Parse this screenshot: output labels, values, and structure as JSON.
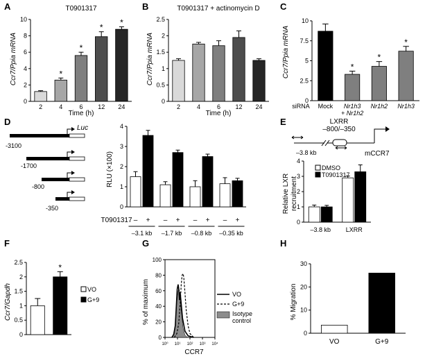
{
  "panels": [
    {
      "id": "A",
      "type": "bar",
      "title": "T0901317",
      "ylabel": "Ccr7/Ppia mRNA",
      "xlabel": "Time (h)",
      "categories": [
        "2",
        "4",
        "6",
        "12",
        "24"
      ],
      "values": [
        1.2,
        2.6,
        5.6,
        7.9,
        8.8
      ],
      "errors": [
        0.1,
        0.25,
        0.4,
        0.6,
        0.3
      ],
      "sig": [
        false,
        true,
        true,
        true,
        true
      ],
      "ylim": [
        0,
        10
      ],
      "yticks": [
        0,
        2,
        4,
        6,
        8,
        10
      ],
      "colors": [
        "#d9d9d9",
        "#a6a6a6",
        "#7f7f7f",
        "#4d4d4d",
        "#262626"
      ]
    },
    {
      "id": "B",
      "type": "bar",
      "title": "T0901317 + actinomycin D",
      "ylabel": "Ccr7/Ppia mRNA",
      "xlabel": "Time (h)",
      "categories": [
        "2",
        "4",
        "6",
        "12",
        "24"
      ],
      "values": [
        1.25,
        1.75,
        1.7,
        1.95,
        1.25
      ],
      "errors": [
        0.05,
        0.05,
        0.15,
        0.2,
        0.05
      ],
      "ylim": [
        0,
        2.5
      ],
      "yticks": [
        0,
        0.5,
        1.0,
        1.5,
        2.0,
        2.5
      ],
      "colors": [
        "#d9d9d9",
        "#a6a6a6",
        "#7f7f7f",
        "#4d4d4d",
        "#262626"
      ]
    },
    {
      "id": "C",
      "type": "bar",
      "ylabel": "Ccr7/Ppia mRNA",
      "xprefix": "siRNA",
      "categories": [
        "Mock",
        "Nr1h3 + Nr1h2",
        "Nr1h2",
        "Nr1h3"
      ],
      "values": [
        8.7,
        3.3,
        4.3,
        6.2
      ],
      "errors": [
        0.9,
        0.4,
        0.6,
        0.6
      ],
      "sig": [
        false,
        true,
        true,
        true
      ],
      "ylim": [
        0,
        10
      ],
      "yticks": [
        0,
        2.5,
        5.0,
        7.5,
        10.0
      ],
      "colors": [
        "#000000",
        "#7f7f7f",
        "#7f7f7f",
        "#7f7f7f"
      ]
    },
    {
      "id": "D",
      "type": "bar",
      "ylabel": "RLU (×100)",
      "treatment": "T0901317",
      "groups": [
        "–3.1 kb",
        "–1.7 kb",
        "–0.8 kb",
        "–0.35 kb"
      ],
      "series": [
        {
          "name": "–",
          "values": [
            1.5,
            1.1,
            1.0,
            1.15
          ],
          "errors": [
            0.25,
            0.15,
            0.3,
            0.3
          ]
        },
        {
          "name": "+",
          "values": [
            3.55,
            2.7,
            2.5,
            1.3
          ],
          "errors": [
            0.25,
            0.12,
            0.12,
            0.12
          ]
        }
      ],
      "ylim": [
        0,
        4
      ],
      "yticks": [
        0,
        1,
        2,
        3,
        4
      ],
      "constructs": [
        "-3100",
        "-1700",
        "-800",
        "-350"
      ],
      "reporter": "Luc"
    },
    {
      "id": "E",
      "type": "bar",
      "ylabel": "Relative LXR recruitment",
      "categories": [
        "–3.8 kb",
        "LXRR"
      ],
      "series": [
        {
          "name": "DMSO",
          "values": [
            1.0,
            2.9
          ],
          "errors": [
            0.12,
            0.12
          ]
        },
        {
          "name": "T0901317",
          "values": [
            1.0,
            3.3
          ],
          "errors": [
            0.1,
            0.45
          ]
        }
      ],
      "ylim": [
        0,
        4
      ],
      "yticks": [
        0,
        1,
        2,
        3,
        4
      ],
      "diagram": {
        "lxrr": "LXRR",
        "range": "–800/–350",
        "distal": "–3.8 kb",
        "gene": "mCCR7"
      }
    },
    {
      "id": "F",
      "type": "bar",
      "ylabel": "Ccr7/Gapdh",
      "categories": [
        "VO",
        "G+9"
      ],
      "values": [
        1.0,
        2.0
      ],
      "errors": [
        0.25,
        0.18
      ],
      "sig": [
        false,
        true
      ],
      "ylim": [
        0,
        2.5
      ],
      "yticks": [
        0,
        0.5,
        1.0,
        1.5,
        2.0,
        2.5
      ],
      "legend": [
        "VO",
        "G+9"
      ],
      "colors": [
        "#ffffff",
        "#000000"
      ]
    },
    {
      "id": "G",
      "type": "histogram",
      "ylabel": "% of maximum",
      "xlabel": "CCR7",
      "yticks": [
        0,
        20,
        40,
        60,
        80,
        100
      ],
      "xticks": [
        "10⁰",
        "10¹",
        "10²",
        "10³",
        "10⁴"
      ],
      "legend": [
        "VO",
        "G+9",
        "Isotype control"
      ],
      "series": [
        {
          "name": "VO",
          "style": "solid",
          "points": [
            [
              0.55,
              0
            ],
            [
              0.7,
              4
            ],
            [
              0.82,
              15
            ],
            [
              0.92,
              45
            ],
            [
              0.98,
              62
            ],
            [
              1.05,
              68
            ],
            [
              1.12,
              60
            ],
            [
              1.16,
              48
            ],
            [
              1.21,
              58
            ],
            [
              1.27,
              48
            ],
            [
              1.4,
              25
            ],
            [
              1.6,
              8
            ],
            [
              1.85,
              2
            ],
            [
              2.3,
              0
            ]
          ]
        },
        {
          "name": "G+9",
          "style": "dashed",
          "points": [
            [
              0.75,
              0
            ],
            [
              0.95,
              5
            ],
            [
              1.1,
              18
            ],
            [
              1.22,
              45
            ],
            [
              1.3,
              68
            ],
            [
              1.37,
              80
            ],
            [
              1.44,
              82
            ],
            [
              1.5,
              78
            ],
            [
              1.58,
              62
            ],
            [
              1.7,
              35
            ],
            [
              1.85,
              15
            ],
            [
              2.0,
              5
            ],
            [
              2.3,
              0
            ]
          ]
        },
        {
          "name": "Isotype control",
          "style": "fill",
          "points": [
            [
              0.6,
              0
            ],
            [
              0.78,
              10
            ],
            [
              0.88,
              28
            ],
            [
              0.95,
              45
            ],
            [
              1.02,
              57
            ],
            [
              1.08,
              62
            ],
            [
              1.14,
              60
            ],
            [
              1.2,
              50
            ],
            [
              1.3,
              35
            ],
            [
              1.45,
              12
            ],
            [
              1.6,
              3
            ],
            [
              1.8,
              0
            ]
          ]
        }
      ]
    },
    {
      "id": "H",
      "type": "bar",
      "ylabel": "% Migration",
      "categories": [
        "VO",
        "G+9"
      ],
      "values": [
        3.5,
        26
      ],
      "ylim": [
        0,
        30
      ],
      "yticks": [
        0,
        10,
        20,
        30
      ],
      "colors": [
        "#ffffff",
        "#000000"
      ]
    }
  ],
  "labels": {
    "A": "A",
    "B": "B",
    "C": "C",
    "D": "D",
    "E": "E",
    "F": "F",
    "G": "G",
    "H": "H",
    "a_title": "T0901317",
    "a_ylab": "Ccr7/Ppia mRNA",
    "a_xlab": "Time (h)",
    "b_title": "T0901317 + actinomycin D",
    "b_ylab": "Ccr7/Ppia mRNA",
    "b_xlab": "Time (h)",
    "c_ylab": "Ccr7/Ppia mRNA",
    "c_siRNA": "siRNA",
    "d_ylab": "RLU (×100)",
    "d_treat": "T0901317",
    "d_luc": "Luc",
    "e_ylab1": "Relative LXR",
    "e_ylab2": "recruitment",
    "e_lxrr": "LXRR",
    "e_range": "–800/–350",
    "e_distal": "–3.8 kb",
    "e_gene": "mCCR7",
    "e_leg1": "DMSO",
    "e_leg2": "T0901317",
    "f_ylab": "Ccr7/Gapdh",
    "f_leg1": "VO",
    "f_leg2": "G+9",
    "g_ylab": "% of maximum",
    "g_xlab": "CCR7",
    "g_leg1": "VO",
    "g_leg2": "G+9",
    "g_leg3a": "Isotype",
    "g_leg3b": "control",
    "h_ylab": "% Migration"
  }
}
